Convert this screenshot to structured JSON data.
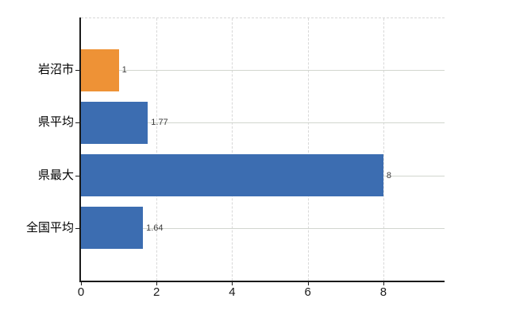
{
  "chart_data": {
    "type": "bar",
    "orientation": "horizontal",
    "title": "",
    "categories": [
      "岩沼市",
      "県平均",
      "県最大",
      "全国平均"
    ],
    "values": [
      1,
      1.77,
      8,
      1.64
    ],
    "value_labels": [
      "1",
      "1.77",
      "8",
      "1.64"
    ],
    "bar_colors": [
      "#ee9236",
      "#3c6db1",
      "#3c6db1",
      "#3c6db1"
    ],
    "x_tick_values": [
      0,
      2,
      4,
      6,
      8
    ],
    "x_tick_labels": [
      "0",
      "2",
      "4",
      "6",
      "8"
    ],
    "xlim": [
      0,
      9.62
    ],
    "grid": {
      "vertical_style": "dashed",
      "horizontal_style": "solid",
      "top_border_style": "dashed"
    },
    "legend_position": "none"
  },
  "colors": {
    "bar_orange": "#ee9236",
    "bar_blue": "#3c6db1",
    "axis": "#1a1a1a",
    "grid_horizontal": "#d2d6cf",
    "grid_vertical": "#d8d8d8",
    "background": "#ffffff"
  }
}
